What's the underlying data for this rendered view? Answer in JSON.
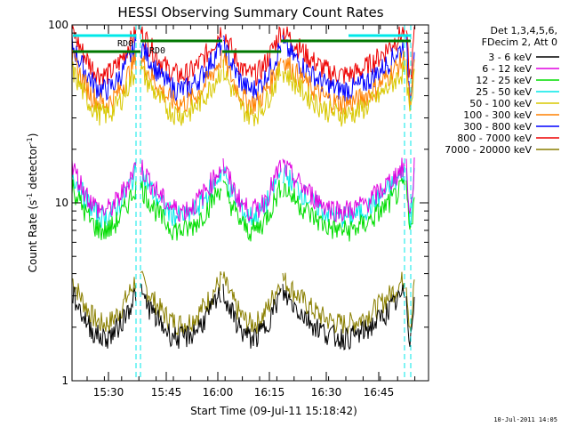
{
  "chart_data": {
    "type": "line",
    "title": "HESSI Observing Summary Count Rates",
    "xlabel": "Start Time (09-Jul-11 15:18:42)",
    "ylabel_prefix": "Count Rate (s",
    "ylabel_sup": "-1",
    "ylabel_suffix": " detector",
    "ylabel_close": ")",
    "y_scale": "log",
    "ylim": [
      1,
      100
    ],
    "x_ticks": [
      "15:30",
      "15:45",
      "16:00",
      "16:15",
      "16:30",
      "16:45"
    ],
    "y_tick_labels": [
      "1",
      "10",
      "100"
    ],
    "legend_header": [
      "Det 1,3,4,5,6,",
      "FDecim 2, Att 0"
    ],
    "legend_placement": "right",
    "series": [
      {
        "name": "3 - 6 keV",
        "color": "#000000"
      },
      {
        "name": "6 - 12 keV",
        "color": "#e000e0"
      },
      {
        "name": "12 - 25 keV",
        "color": "#00dd00"
      },
      {
        "name": "25 - 50 keV",
        "color": "#00e8e8"
      },
      {
        "name": "50 - 100 keV",
        "color": "#d8c800"
      },
      {
        "name": "100 - 300 keV",
        "color": "#ff8000"
      },
      {
        "name": "300 - 800 keV",
        "color": "#0000ff"
      },
      {
        "name": "800 - 7000 keV",
        "color": "#ee0000"
      },
      {
        "name": "7000 - 20000 keV",
        "color": "#8a7f00"
      }
    ],
    "annotations": [
      "RD0",
      "RD0"
    ],
    "timestamp": "10-Jul-2011 14:05"
  }
}
